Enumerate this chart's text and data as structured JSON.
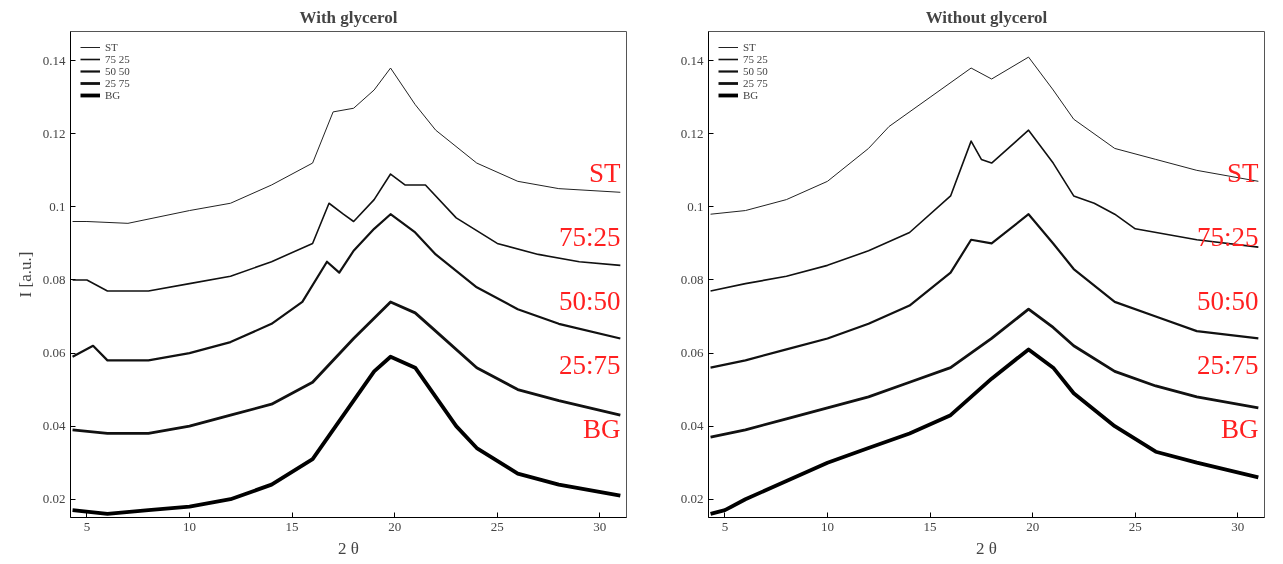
{
  "chart_data": [
    {
      "type": "line",
      "title": "With glycerol",
      "xlabel": "2 θ",
      "ylabel": "I [a.u.]",
      "xlim": [
        4.2,
        31.3
      ],
      "ylim": [
        0.015,
        0.148
      ],
      "xticks": [
        5,
        10,
        15,
        20,
        25,
        30
      ],
      "yticks": [
        0.02,
        0.04,
        0.06,
        0.08,
        0.1,
        0.12,
        0.14
      ],
      "grid": false,
      "legend": "top left",
      "marker": "none",
      "line_style": "solid",
      "series": [
        {
          "name": "ST",
          "color": "#222222",
          "x": [
            4.3,
            5,
            7,
            10,
            12,
            14,
            16,
            17,
            18,
            19,
            19.8,
            21,
            22,
            24,
            26,
            28,
            31
          ],
          "values": [
            0.096,
            0.096,
            0.0955,
            0.099,
            0.101,
            0.106,
            0.112,
            0.126,
            0.127,
            0.132,
            0.138,
            0.128,
            0.121,
            0.112,
            0.107,
            0.105,
            0.104
          ]
        },
        {
          "name": "75 25",
          "color": "#111111",
          "x": [
            4.3,
            5,
            6,
            8,
            10,
            12,
            14,
            16,
            16.8,
            17.5,
            18,
            19,
            19.8,
            20.5,
            21.5,
            23,
            25,
            27,
            29,
            31
          ],
          "values": [
            0.08,
            0.08,
            0.077,
            0.077,
            0.079,
            0.081,
            0.085,
            0.09,
            0.101,
            0.098,
            0.096,
            0.102,
            0.109,
            0.106,
            0.106,
            0.097,
            0.09,
            0.087,
            0.085,
            0.084
          ]
        },
        {
          "name": "50 50",
          "color": "#111111",
          "x": [
            4.3,
            5.3,
            6,
            8,
            10,
            12,
            14,
            15.5,
            16.7,
            17.3,
            18,
            19,
            19.8,
            21,
            22,
            24,
            26,
            28,
            31
          ],
          "values": [
            0.059,
            0.062,
            0.058,
            0.058,
            0.06,
            0.063,
            0.068,
            0.074,
            0.085,
            0.082,
            0.088,
            0.094,
            0.098,
            0.093,
            0.087,
            0.078,
            0.072,
            0.068,
            0.064
          ]
        },
        {
          "name": "25 75",
          "color": "#111111",
          "x": [
            4.3,
            6,
            8,
            10,
            12,
            14,
            16,
            18,
            19.8,
            21,
            22,
            24,
            26,
            28,
            31
          ],
          "values": [
            0.039,
            0.038,
            0.038,
            0.04,
            0.043,
            0.046,
            0.052,
            0.064,
            0.074,
            0.071,
            0.066,
            0.056,
            0.05,
            0.047,
            0.043
          ]
        },
        {
          "name": "BG",
          "color": "#000000",
          "x": [
            4.3,
            6,
            8,
            10,
            12,
            14,
            16,
            17,
            18,
            19,
            19.8,
            21,
            22,
            23,
            24,
            26,
            28,
            31
          ],
          "values": [
            0.017,
            0.016,
            0.017,
            0.018,
            0.02,
            0.024,
            0.031,
            0.039,
            0.047,
            0.055,
            0.059,
            0.056,
            0.048,
            0.04,
            0.034,
            0.027,
            0.024,
            0.021
          ]
        }
      ],
      "annotations": [
        "ST",
        "75:25",
        "50:50",
        "25:75",
        "BG"
      ]
    },
    {
      "type": "line",
      "title": "Without glycerol",
      "xlabel": "2 θ",
      "xlim": [
        4.2,
        31.3
      ],
      "ylim": [
        0.015,
        0.148
      ],
      "xticks": [
        5,
        10,
        15,
        20,
        25,
        30
      ],
      "yticks": [
        0.02,
        0.04,
        0.06,
        0.08,
        0.1,
        0.12,
        0.14
      ],
      "grid": false,
      "legend": "top left",
      "marker": "none",
      "line_style": "solid",
      "series": [
        {
          "name": "ST",
          "color": "#222222",
          "x": [
            4.3,
            6,
            8,
            10,
            12,
            13,
            15,
            17,
            18,
            19.8,
            21,
            22,
            24,
            26,
            28,
            31
          ],
          "values": [
            0.098,
            0.099,
            0.102,
            0.107,
            0.116,
            0.122,
            0.13,
            0.138,
            0.135,
            0.141,
            0.132,
            0.124,
            0.116,
            0.113,
            0.11,
            0.107
          ]
        },
        {
          "name": "75 25",
          "color": "#111111",
          "x": [
            4.3,
            6,
            8,
            10,
            12,
            14,
            16,
            17,
            17.5,
            18,
            19.8,
            21,
            22,
            23,
            24,
            25,
            28,
            31
          ],
          "values": [
            0.077,
            0.079,
            0.081,
            0.084,
            0.088,
            0.093,
            0.103,
            0.118,
            0.113,
            0.112,
            0.121,
            0.112,
            0.103,
            0.101,
            0.098,
            0.094,
            0.091,
            0.089
          ]
        },
        {
          "name": "50 50",
          "color": "#111111",
          "x": [
            4.3,
            6,
            8,
            10,
            12,
            14,
            16,
            17,
            18,
            19.8,
            21,
            22,
            24,
            26,
            28,
            31
          ],
          "values": [
            0.056,
            0.058,
            0.061,
            0.064,
            0.068,
            0.073,
            0.082,
            0.091,
            0.09,
            0.098,
            0.09,
            0.083,
            0.074,
            0.07,
            0.066,
            0.064
          ]
        },
        {
          "name": "25 75",
          "color": "#111111",
          "x": [
            4.3,
            6,
            8,
            10,
            12,
            14,
            16,
            18,
            19.8,
            21,
            22,
            24,
            26,
            28,
            31
          ],
          "values": [
            0.037,
            0.039,
            0.042,
            0.045,
            0.048,
            0.052,
            0.056,
            0.064,
            0.072,
            0.067,
            0.062,
            0.055,
            0.051,
            0.048,
            0.045
          ]
        },
        {
          "name": "BG",
          "color": "#000000",
          "x": [
            4.3,
            5,
            6,
            8,
            10,
            12,
            14,
            16,
            18,
            19.8,
            21,
            22,
            24,
            26,
            28,
            31
          ],
          "values": [
            0.016,
            0.017,
            0.02,
            0.025,
            0.03,
            0.034,
            0.038,
            0.043,
            0.053,
            0.061,
            0.056,
            0.049,
            0.04,
            0.033,
            0.03,
            0.026
          ]
        }
      ],
      "annotations": [
        "ST",
        "75:25",
        "50:50",
        "25:75",
        "BG"
      ]
    }
  ]
}
